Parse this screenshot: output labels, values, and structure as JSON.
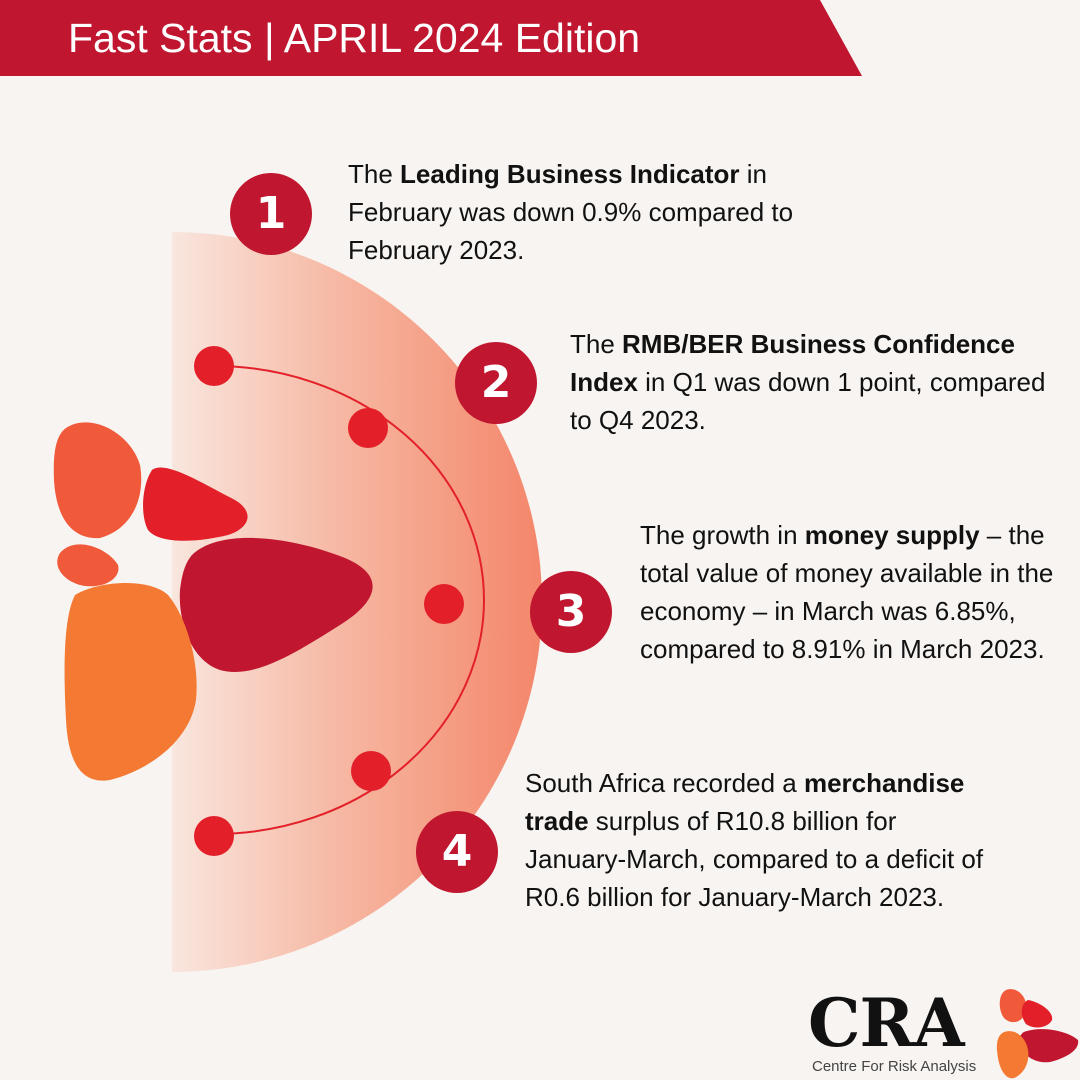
{
  "header": {
    "title": "Fast Stats | APRIL 2024 Edition",
    "banner_color": "#c0162f"
  },
  "stats": [
    {
      "number": "1",
      "text_before": "The ",
      "bold": "Leading Business Indicator",
      "text_after": " in February was down 0.9% compared to February 2023."
    },
    {
      "number": "2",
      "text_before": "The ",
      "bold": "RMB/BER Business Confidence Index",
      "text_after": " in Q1 was down 1 point, compared to Q4 2023."
    },
    {
      "number": "3",
      "text_before": "The growth in ",
      "bold": "money supply",
      "text_after": " – the total value of money available in the economy – in March was 6.85%, compared to 8.91% in March 2023."
    },
    {
      "number": "4",
      "text_before": "South Africa recorded a ",
      "bold": "merchandise trade",
      "text_after": " surplus of R10.8 billion for January-March, compared to a deficit of R0.6 billion for January-March 2023."
    }
  ],
  "logo": {
    "name": "CRA",
    "tagline": "Centre For Risk Analysis"
  },
  "colors": {
    "background": "#f8f4f1",
    "accent_red": "#c0162f",
    "dot_red": "#e3202a",
    "orange": "#f47a34",
    "salmon": "#f49477"
  }
}
